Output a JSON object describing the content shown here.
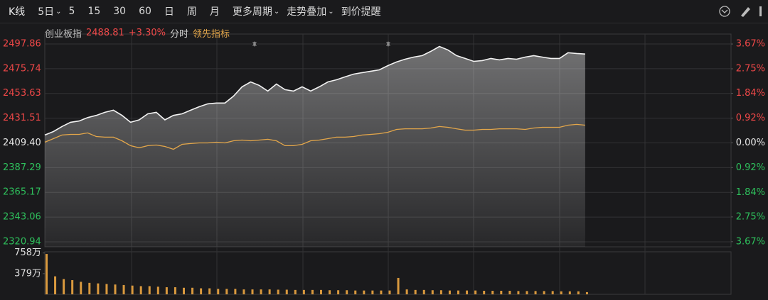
{
  "toolbar": [
    "K线",
    "5日",
    "5",
    "15",
    "30",
    "60",
    "日",
    "周",
    "月",
    "更多周期",
    "走势叠加",
    "到价提醒"
  ],
  "header": {
    "price": "2488.81",
    "change": "+3.30%",
    "tab": "分时"
  },
  "chart_data": [
    {
      "type": "line",
      "x": [
        0,
        1,
        2,
        3,
        4,
        5,
        6,
        7,
        8,
        9,
        10,
        11,
        12,
        13,
        14,
        15,
        16,
        17,
        18,
        19,
        20,
        21,
        22,
        23,
        24,
        25,
        26,
        27,
        28,
        29,
        30,
        31,
        32,
        33,
        34,
        35,
        36,
        37,
        38,
        39,
        40,
        41,
        42,
        43,
        44,
        45,
        46,
        47,
        48,
        49,
        50,
        51,
        52,
        53,
        54,
        55,
        56,
        57,
        58,
        59,
        60,
        61,
        62,
        63
      ],
      "xlim": [
        0,
        80
      ],
      "ylim": [
        2316.5,
        2506.7
      ],
      "yticks": [
        2497.86,
        2475.74,
        2453.63,
        2431.51,
        {
          "value": 2409.4,
          "label": "2409.40"
        },
        2387.29,
        2365.17,
        2343.06,
        2320.94
      ],
      "y2lim": [
        -3.86,
        4.04
      ],
      "y2ticks": [
        {
          "value": 3.67,
          "label": "3.67%"
        },
        {
          "value": 2.75,
          "label": "2.75%"
        },
        {
          "value": 1.84,
          "label": "1.84%"
        },
        {
          "value": 0.92,
          "label": "0.92%"
        },
        {
          "value": 0,
          "label": "0.00%"
        },
        {
          "value": -0.92,
          "label": "0.92%"
        },
        {
          "value": -1.84,
          "label": "1.84%"
        },
        {
          "value": -2.75,
          "label": "2.75%"
        },
        {
          "value": -3.67,
          "label": "3.67%"
        }
      ],
      "series": [
        {
          "name": "创业板指",
          "color": "#f2f2f2",
          "values": [
            2416.4,
            2419.5,
            2424,
            2427.8,
            2429,
            2432,
            2434,
            2436.7,
            2438.6,
            2434,
            2427.8,
            2430,
            2435.4,
            2436.7,
            2430,
            2434,
            2435.4,
            2438.6,
            2441.7,
            2444.3,
            2445,
            2445,
            2451.2,
            2459.5,
            2463.9,
            2460.8,
            2455.7,
            2462,
            2457,
            2455.7,
            2459.5,
            2455.7,
            2459.5,
            2463.9,
            2465.8,
            2468.4,
            2470.9,
            2472.2,
            2473.5,
            2474.7,
            2478.5,
            2481.7,
            2484.2,
            2486.1,
            2487.4,
            2491.2,
            2495.6,
            2492.5,
            2487.4,
            2484.9,
            2482.3,
            2483,
            2484.9,
            2483.6,
            2484.9,
            2484.2,
            2486.1,
            2487.4,
            2486.1,
            2484.9,
            2484.9,
            2490,
            2489.3,
            2488.8
          ]
        },
        {
          "name": "领先指标",
          "color": "#e3a64a",
          "values": [
            2410,
            2413.2,
            2416.4,
            2417,
            2417,
            2418.3,
            2415.1,
            2414.5,
            2414.5,
            2411.3,
            2406.9,
            2405,
            2406.9,
            2407.5,
            2406.2,
            2403.7,
            2408.1,
            2408.8,
            2409.4,
            2409.4,
            2410,
            2409.4,
            2411.3,
            2411.9,
            2411.3,
            2411.9,
            2412.6,
            2411.3,
            2406.9,
            2406.9,
            2408.1,
            2411.3,
            2411.9,
            2413.2,
            2414.5,
            2414.5,
            2415.1,
            2416.4,
            2417,
            2417.6,
            2418.9,
            2421.4,
            2422,
            2422,
            2422,
            2422.7,
            2424,
            2423.3,
            2422,
            2420.8,
            2420.8,
            2421.4,
            2421.4,
            2422,
            2422,
            2422,
            2421.4,
            2422.7,
            2423.3,
            2423.3,
            2423.3,
            2425.2,
            2425.9,
            2425.2
          ]
        }
      ]
    },
    {
      "type": "bar",
      "x": [
        0,
        1,
        2,
        3,
        4,
        5,
        6,
        7,
        8,
        9,
        10,
        11,
        12,
        13,
        14,
        15,
        16,
        17,
        18,
        19,
        20,
        21,
        22,
        23,
        24,
        25,
        26,
        27,
        28,
        29,
        30,
        31,
        32,
        33,
        34,
        35,
        36,
        37,
        38,
        39,
        40,
        41,
        42,
        43,
        44,
        45,
        46,
        47,
        48,
        49,
        50,
        51,
        52,
        53,
        54,
        55,
        56,
        57,
        58,
        59,
        60,
        61,
        62,
        63
      ],
      "xlim": [
        0,
        80
      ],
      "ylim": [
        0,
        780
      ],
      "yticks": [
        {
          "value": 758,
          "label": "758万"
        },
        {
          "value": 379,
          "label": "379万"
        }
      ],
      "color": "#d9993e",
      "values": [
        740,
        330,
        280,
        260,
        230,
        210,
        200,
        190,
        180,
        170,
        160,
        150,
        150,
        140,
        130,
        130,
        120,
        120,
        110,
        110,
        100,
        100,
        100,
        90,
        90,
        90,
        90,
        85,
        85,
        80,
        80,
        80,
        80,
        75,
        75,
        75,
        70,
        70,
        70,
        70,
        70,
        300,
        90,
        80,
        80,
        75,
        75,
        70,
        70,
        70,
        70,
        65,
        65,
        65,
        65,
        60,
        60,
        60,
        60,
        60,
        55,
        55,
        55,
        40
      ]
    }
  ]
}
